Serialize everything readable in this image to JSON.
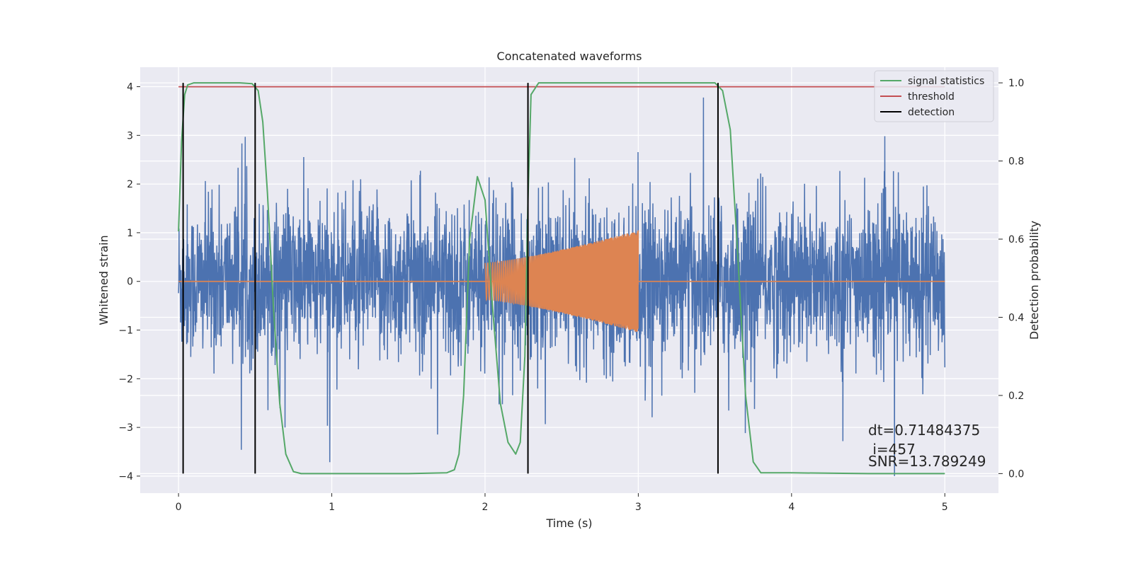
{
  "chart_data": {
    "type": "line",
    "title": "Concatenated waveforms",
    "xlabel": "Time (s)",
    "ylabel": "Whitened strain",
    "y2label": "Detection probability",
    "xlim": [
      -0.25,
      5.35
    ],
    "ylim": [
      -4.35,
      4.4
    ],
    "y2lim": [
      -0.05,
      1.04
    ],
    "xticks": [
      0,
      1,
      2,
      3,
      4,
      5
    ],
    "yticks": [
      -4,
      -3,
      -2,
      -1,
      0,
      1,
      2,
      3,
      4
    ],
    "y2ticks": [
      0.0,
      0.2,
      0.4,
      0.6,
      0.8,
      1.0
    ],
    "ytick_labels": [
      "−4",
      "−3",
      "−2",
      "−1",
      "0",
      "1",
      "2",
      "3",
      "4"
    ],
    "y2tick_labels": [
      "0.0",
      "0.2",
      "0.4",
      "0.6",
      "0.8",
      "1.0"
    ],
    "grid": true,
    "legend_position": "top-right",
    "colors": {
      "strain": "#4c72b0",
      "injection": "#dd8452",
      "signal_statistics": "#55a868",
      "threshold": "#c44e52",
      "detection": "#000000",
      "plot_bg": "#eaeaf2",
      "grid": "#ffffff"
    },
    "series": [
      {
        "name": "",
        "axis": "left",
        "description_type": "noise",
        "x_range": [
          0,
          5
        ],
        "typical_amplitude": 0.8,
        "peak_range": [
          -4,
          4.1
        ]
      },
      {
        "name": "",
        "axis": "left",
        "description_type": "chirp",
        "flat_zero_range": [
          0,
          5
        ],
        "chirp_x_range": [
          2.0,
          3.0
        ],
        "chirp_amplitude_start": 0.38,
        "chirp_amplitude_end": 1.05
      },
      {
        "name": "signal statistics",
        "axis": "right",
        "x": [
          0.0,
          0.02,
          0.04,
          0.06,
          0.1,
          0.2,
          0.3,
          0.4,
          0.48,
          0.52,
          0.55,
          0.58,
          0.62,
          0.66,
          0.7,
          0.75,
          0.8,
          1.0,
          1.5,
          1.75,
          1.8,
          1.83,
          1.86,
          1.9,
          1.95,
          2.0,
          2.05,
          2.1,
          2.15,
          2.2,
          2.23,
          2.26,
          2.28,
          2.3,
          2.35,
          2.5,
          3.0,
          3.5,
          3.55,
          3.6,
          3.65,
          3.7,
          3.75,
          3.8,
          4.0,
          4.5,
          5.0
        ],
        "y": [
          0.62,
          0.85,
          0.97,
          0.995,
          1.0,
          1.0,
          1.0,
          1.0,
          0.998,
          0.98,
          0.9,
          0.72,
          0.42,
          0.18,
          0.05,
          0.005,
          0.0,
          0.0,
          0.0,
          0.002,
          0.01,
          0.05,
          0.2,
          0.6,
          0.76,
          0.7,
          0.42,
          0.18,
          0.08,
          0.05,
          0.08,
          0.3,
          0.7,
          0.97,
          1.0,
          1.0,
          1.0,
          1.0,
          0.98,
          0.88,
          0.55,
          0.2,
          0.03,
          0.002,
          0.002,
          0.0,
          0.0
        ]
      },
      {
        "name": "threshold",
        "axis": "right",
        "x": [
          0,
          5
        ],
        "y": [
          0.99,
          0.99
        ]
      },
      {
        "name": "detection",
        "axis": "right",
        "vertical_lines_x": [
          0.03,
          0.5,
          2.28,
          3.52
        ],
        "y_range": [
          0.0,
          1.0
        ]
      }
    ],
    "legend": [
      "signal statistics",
      "threshold",
      "detection"
    ],
    "annotations": {
      "dt": "dt=0.71484375",
      "i": " i=457",
      "snr": "SNR=13.789249"
    }
  }
}
